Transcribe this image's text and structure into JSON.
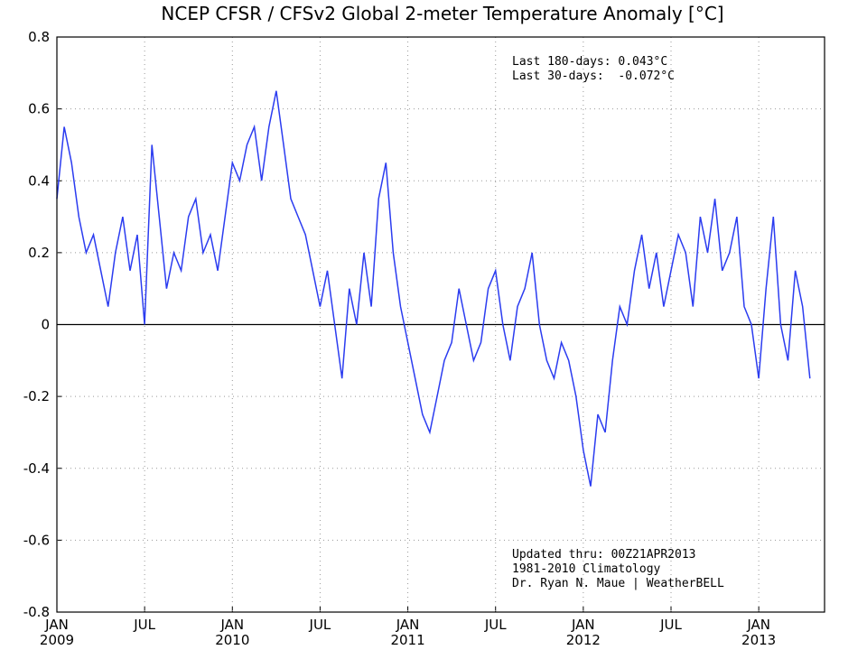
{
  "chart_data": {
    "type": "line",
    "title": "NCEP CFSR / CFSv2 Global 2-meter Temperature Anomaly [°C]",
    "annotations": [
      "Last 180-days: 0.043°C",
      "Last 30-days:  -0.072°C",
      "Updated thru: 00Z21APR2013",
      "1981-2010 Climatology",
      "Dr. Ryan N. Maue | WeatherBELL"
    ],
    "xlim": [
      0,
      52.5
    ],
    "xticks": [
      {
        "value": 0,
        "label": "JAN",
        "year": "2009"
      },
      {
        "value": 6,
        "label": "JUL"
      },
      {
        "value": 12,
        "label": "JAN",
        "year": "2010"
      },
      {
        "value": 18,
        "label": "JUL"
      },
      {
        "value": 24,
        "label": "JAN",
        "year": "2011"
      },
      {
        "value": 30,
        "label": "JUL"
      },
      {
        "value": 36,
        "label": "JAN",
        "year": "2012"
      },
      {
        "value": 42,
        "label": "JUL"
      },
      {
        "value": 48,
        "label": "JAN",
        "year": "2013"
      }
    ],
    "ylim": [
      -0.8,
      0.8
    ],
    "yticks": [
      -0.8,
      -0.6,
      -0.4,
      -0.2,
      0,
      0.2,
      0.4,
      0.6,
      0.8
    ],
    "grid": true,
    "x": [
      0,
      0.5,
      1,
      1.5,
      2,
      2.5,
      3,
      3.5,
      4,
      4.5,
      5,
      5.5,
      6,
      6.5,
      7,
      7.5,
      8,
      8.5,
      9,
      9.5,
      10,
      10.5,
      11,
      11.5,
      12,
      12.5,
      13,
      13.5,
      14,
      14.5,
      15,
      15.5,
      16,
      16.5,
      17,
      17.5,
      18,
      18.5,
      19,
      19.5,
      20,
      20.5,
      21,
      21.5,
      22,
      22.5,
      23,
      23.5,
      24,
      24.5,
      25,
      25.5,
      26,
      26.5,
      27,
      27.5,
      28,
      28.5,
      29,
      29.5,
      30,
      30.5,
      31,
      31.5,
      32,
      32.5,
      33,
      33.5,
      34,
      34.5,
      35,
      35.5,
      36,
      36.5,
      37,
      37.5,
      38,
      38.5,
      39,
      39.5,
      40,
      40.5,
      41,
      41.5,
      42,
      42.5,
      43,
      43.5,
      44,
      44.5,
      45,
      45.5,
      46,
      46.5,
      47,
      47.5,
      48,
      48.5,
      49,
      49.5,
      50,
      50.5,
      51,
      51.5
    ],
    "series": [
      {
        "name": "Global 2-meter Temperature Anomaly",
        "color": "#2b3cf0",
        "values": [
          0.35,
          0.55,
          0.45,
          0.3,
          0.2,
          0.25,
          0.15,
          0.05,
          0.2,
          0.3,
          0.15,
          0.25,
          0.0,
          0.5,
          0.3,
          0.1,
          0.2,
          0.15,
          0.3,
          0.35,
          0.2,
          0.25,
          0.15,
          0.3,
          0.45,
          0.4,
          0.5,
          0.55,
          0.4,
          0.55,
          0.65,
          0.5,
          0.35,
          0.3,
          0.25,
          0.15,
          0.05,
          0.15,
          0.0,
          -0.15,
          0.1,
          0.0,
          0.2,
          0.05,
          0.35,
          0.45,
          0.2,
          0.05,
          -0.05,
          -0.15,
          -0.25,
          -0.3,
          -0.2,
          -0.1,
          -0.05,
          0.1,
          0.0,
          -0.1,
          -0.05,
          0.1,
          0.15,
          0.0,
          -0.1,
          0.05,
          0.1,
          0.2,
          0.0,
          -0.1,
          -0.15,
          -0.05,
          -0.1,
          -0.2,
          -0.35,
          -0.45,
          -0.25,
          -0.3,
          -0.1,
          0.05,
          0.0,
          0.15,
          0.25,
          0.1,
          0.2,
          0.05,
          0.15,
          0.25,
          0.2,
          0.05,
          0.3,
          0.2,
          0.35,
          0.15,
          0.2,
          0.3,
          0.05,
          0.0,
          -0.15,
          0.1,
          0.3,
          0.0,
          -0.1,
          0.15,
          0.05,
          -0.15
        ]
      }
    ]
  }
}
